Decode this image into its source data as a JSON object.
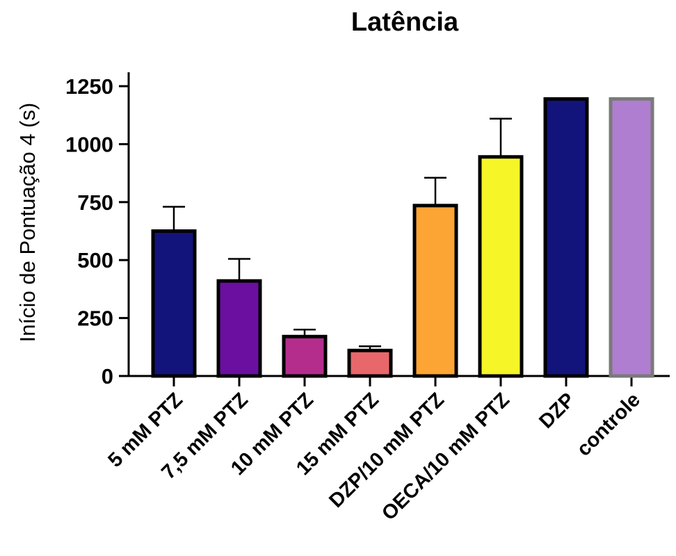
{
  "chart_data": {
    "type": "bar",
    "title": "Latência",
    "xlabel": "",
    "ylabel": "Início de Pontuação 4 (s)",
    "ylim": [
      0,
      1250
    ],
    "yticks": [
      "0",
      "250",
      "500",
      "750",
      "1000",
      "1250"
    ],
    "grid": false,
    "categories": [
      "5 mM PTZ",
      "7,5 mM PTZ",
      "10 mM PTZ",
      "15 mM PTZ",
      "DZP/10 mM PTZ",
      "OECA/10 mM PTZ",
      "DZP",
      "controle"
    ],
    "values": [
      625,
      410,
      170,
      110,
      735,
      945,
      1195,
      1195
    ],
    "error_upper": [
      730,
      505,
      200,
      128,
      855,
      1110,
      null,
      null
    ],
    "colors": [
      "#13137c",
      "#6a0fa0",
      "#b42d8d",
      "#e8676a",
      "#fca434",
      "#f5f527",
      "#13137c",
      "#b07ed0"
    ],
    "edge_colors": [
      "#000000",
      "#000000",
      "#000000",
      "#000000",
      "#000000",
      "#000000",
      "#000000",
      "#7a7a7a"
    ]
  }
}
